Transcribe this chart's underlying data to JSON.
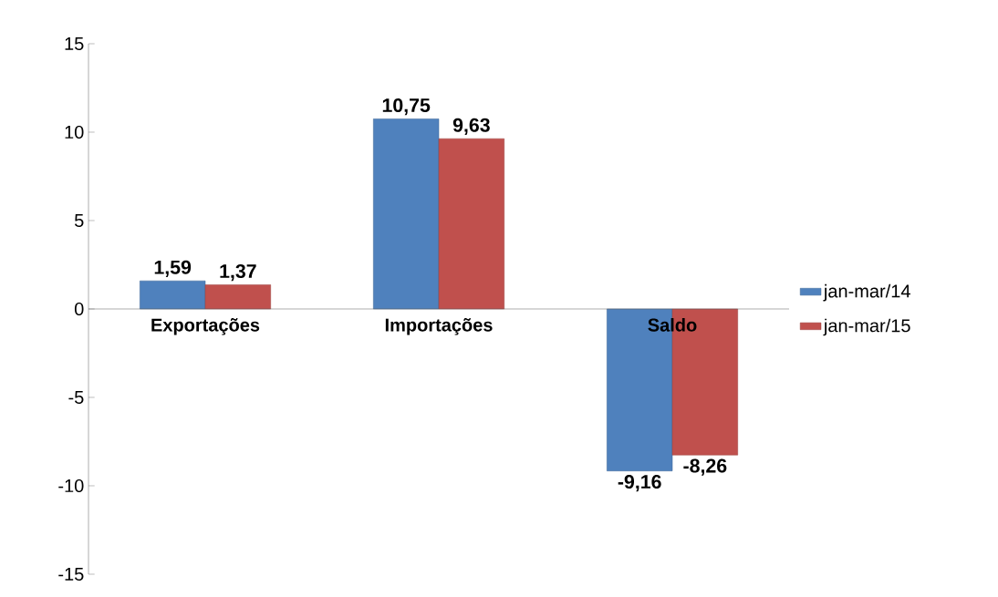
{
  "chart_data": {
    "type": "bar",
    "categories": [
      "Exportações",
      "Importações",
      "Saldo"
    ],
    "series": [
      {
        "name": "jan-mar/14",
        "color": "#4f81bd",
        "values": [
          1.59,
          10.75,
          -9.16
        ],
        "value_labels": [
          "1,59",
          "10,75",
          "-9,16"
        ]
      },
      {
        "name": "jan-mar/15",
        "color": "#c0504d",
        "values": [
          1.37,
          9.63,
          -8.26
        ],
        "value_labels": [
          "1,37",
          "9,63",
          "-8,26"
        ]
      }
    ],
    "ylim": [
      -15,
      15
    ],
    "yticks": [
      -15,
      -10,
      -5,
      0,
      5,
      10,
      15
    ],
    "grid": false,
    "legend": "right"
  }
}
